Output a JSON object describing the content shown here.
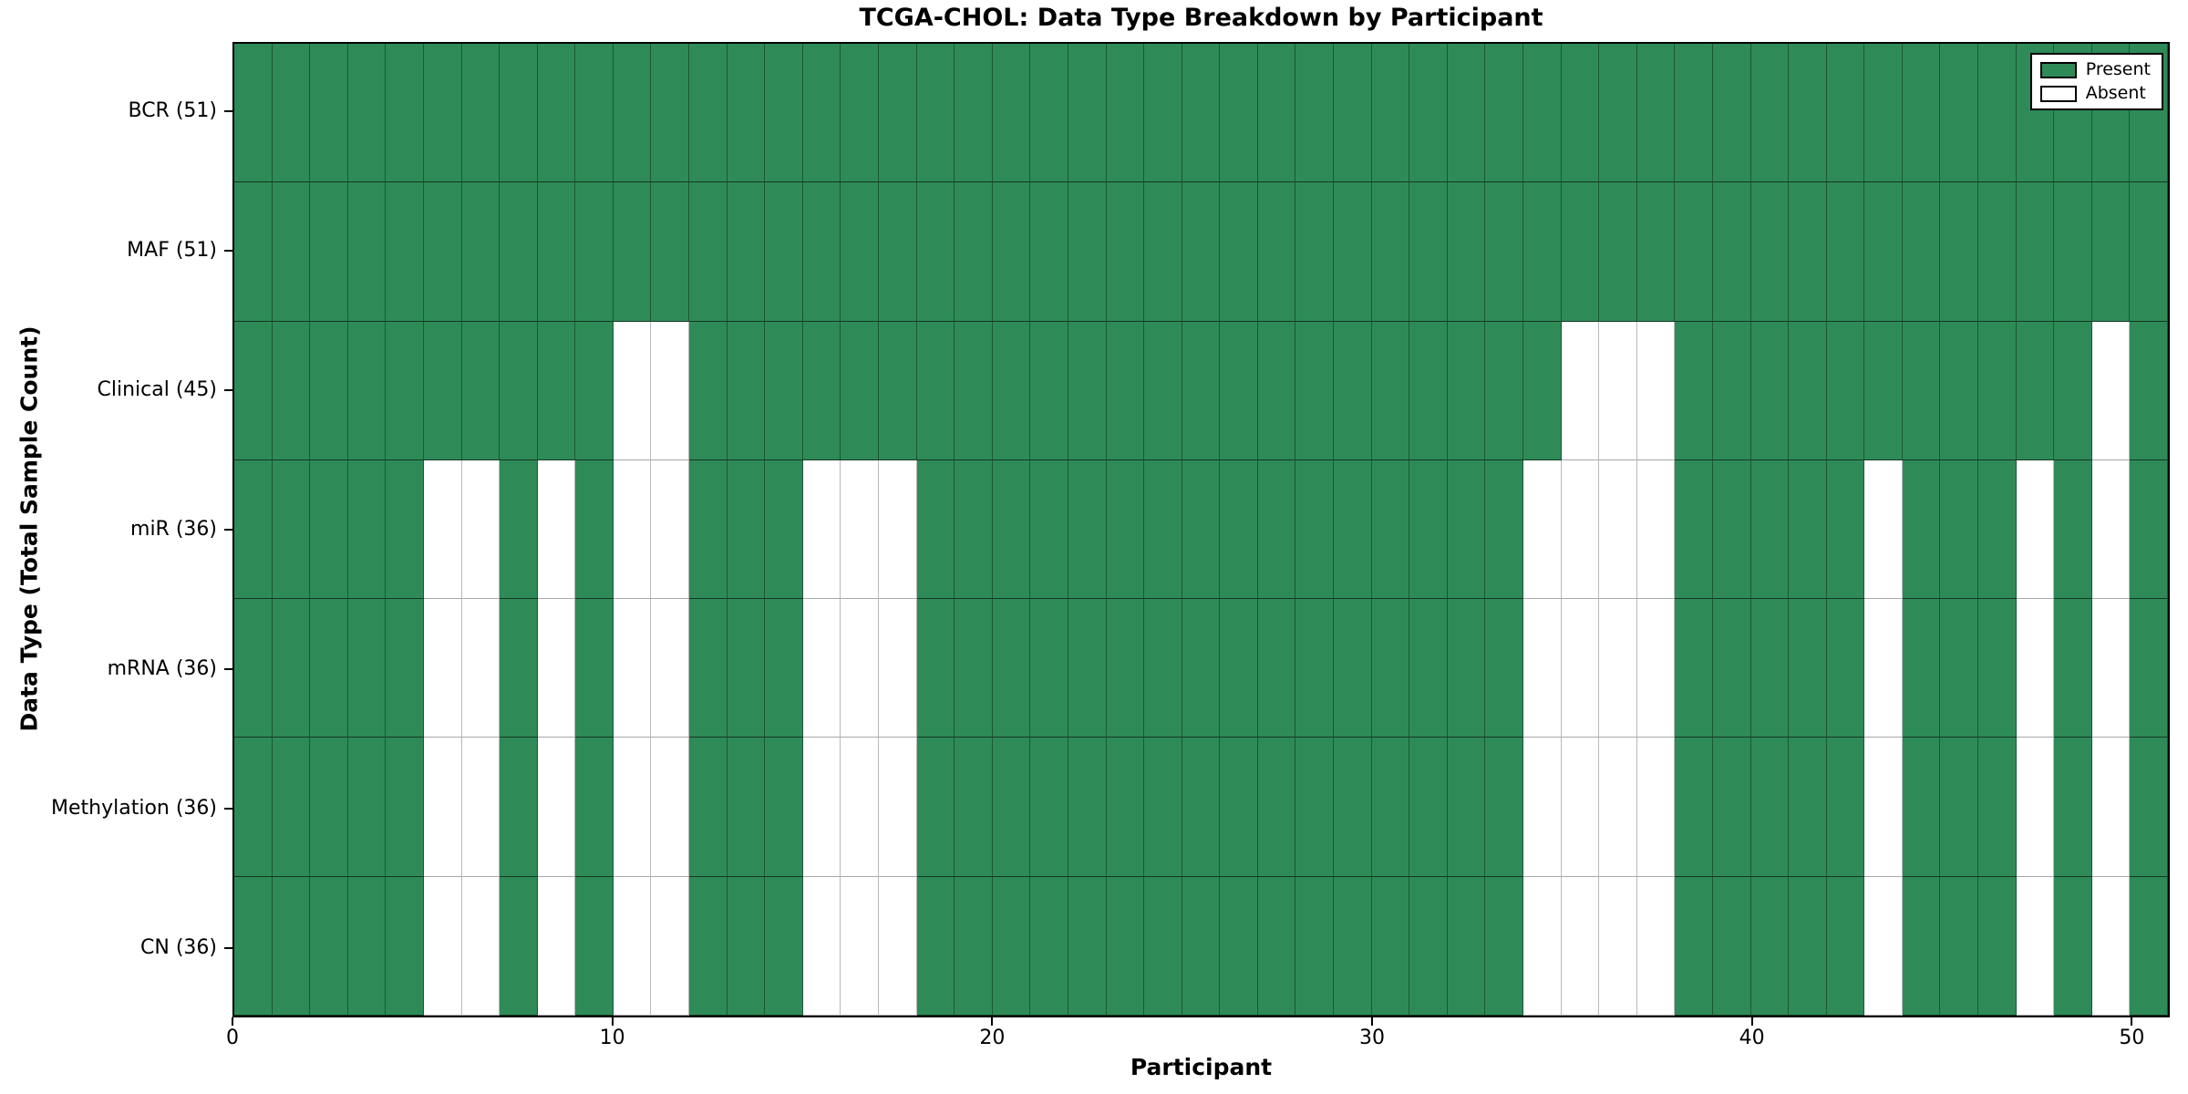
{
  "chart_data": {
    "type": "heatmap",
    "title": "TCGA-CHOL: Data Type Breakdown by Participant",
    "xlabel": "Participant",
    "ylabel": "Data Type (Total Sample Count)",
    "x_range": [
      0,
      51
    ],
    "n_participants": 51,
    "x_ticks": [
      0,
      10,
      20,
      30,
      40,
      50
    ],
    "grid": true,
    "colors": {
      "present": "#2e8b57",
      "absent": "#ffffff"
    },
    "legend": {
      "position": "upper right",
      "entries": [
        {
          "label": "Present",
          "color": "#2e8b57"
        },
        {
          "label": "Absent",
          "color": "#ffffff"
        }
      ]
    },
    "rows": [
      {
        "label": "BCR (51)",
        "data_type": "BCR",
        "total": 51,
        "absent_participants": []
      },
      {
        "label": "MAF (51)",
        "data_type": "MAF",
        "total": 51,
        "absent_participants": []
      },
      {
        "label": "Clinical (45)",
        "data_type": "Clinical",
        "total": 45,
        "absent_participants": [
          10,
          11,
          35,
          36,
          37,
          49
        ]
      },
      {
        "label": "miR (36)",
        "data_type": "miR",
        "total": 36,
        "absent_participants": [
          5,
          6,
          8,
          10,
          11,
          15,
          16,
          17,
          34,
          35,
          36,
          37,
          43,
          47,
          49
        ]
      },
      {
        "label": "mRNA (36)",
        "data_type": "mRNA",
        "total": 36,
        "absent_participants": [
          5,
          6,
          8,
          10,
          11,
          15,
          16,
          17,
          34,
          35,
          36,
          37,
          43,
          47,
          49
        ]
      },
      {
        "label": "Methylation (36)",
        "data_type": "Methylation",
        "total": 36,
        "absent_participants": [
          5,
          6,
          8,
          10,
          11,
          15,
          16,
          17,
          34,
          35,
          36,
          37,
          43,
          47,
          49
        ]
      },
      {
        "label": "CN (36)",
        "data_type": "CN",
        "total": 36,
        "absent_participants": [
          5,
          6,
          8,
          10,
          11,
          15,
          16,
          17,
          34,
          35,
          36,
          37,
          43,
          47,
          49
        ]
      }
    ]
  }
}
